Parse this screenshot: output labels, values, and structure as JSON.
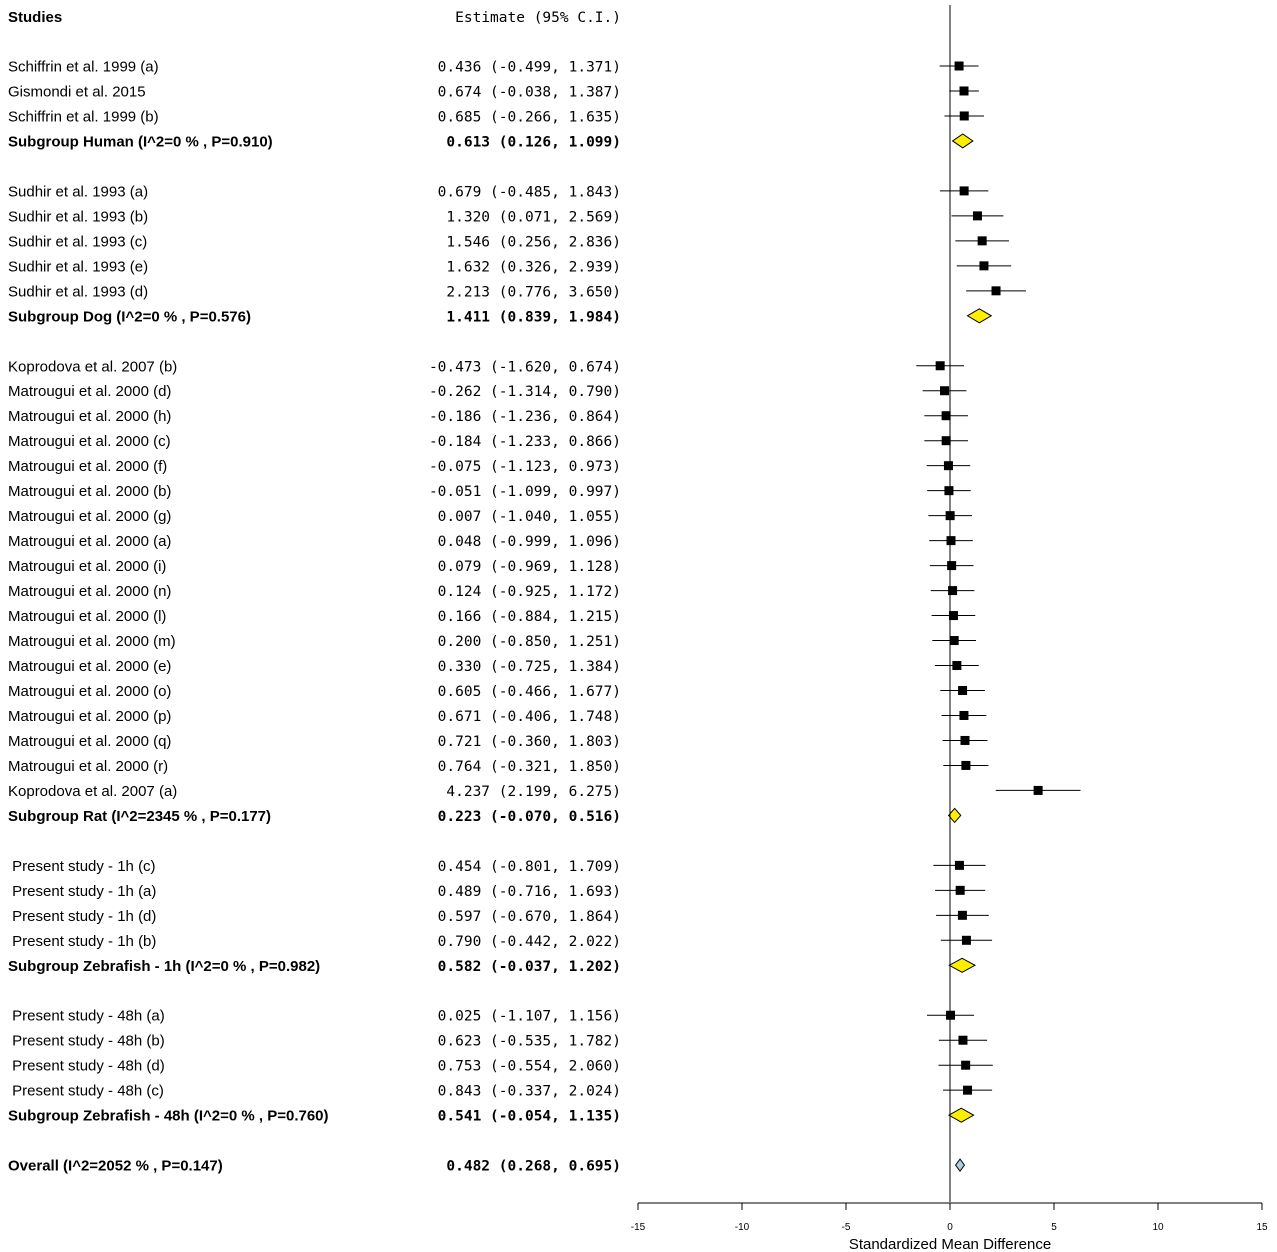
{
  "chart_data": {
    "type": "forest",
    "header": {
      "studies": "Studies",
      "estimate": "Estimate (95% C.I.)"
    },
    "xlabel": "Standardized Mean Difference",
    "xlim": [
      -15,
      15
    ],
    "xticks": [
      -15,
      -10,
      -5,
      0,
      5,
      10,
      15
    ],
    "colors": {
      "summary_fill": "#ffee00",
      "overall_fill": "#a9cfe0",
      "marker": "#000000"
    },
    "rows": [
      {
        "kind": "study",
        "label": "Schiffrin et al. 1999 (a)",
        "est": 0.436,
        "lo": -0.499,
        "hi": 1.371,
        "text": "0.436 (-0.499, 1.371)"
      },
      {
        "kind": "study",
        "label": "Gismondi et al. 2015",
        "est": 0.674,
        "lo": -0.038,
        "hi": 1.387,
        "text": "0.674 (-0.038, 1.387)"
      },
      {
        "kind": "study",
        "label": "Schiffrin et al. 1999 (b)",
        "est": 0.685,
        "lo": -0.266,
        "hi": 1.635,
        "text": "0.685 (-0.266, 1.635)"
      },
      {
        "kind": "subgroup",
        "label": "Subgroup Human (I^2=0 % , P=0.910)",
        "est": 0.613,
        "lo": 0.126,
        "hi": 1.099,
        "text": "0.613 (0.126, 1.099)"
      },
      {
        "kind": "blank"
      },
      {
        "kind": "study",
        "label": "Sudhir et al. 1993 (a)",
        "est": 0.679,
        "lo": -0.485,
        "hi": 1.843,
        "text": "0.679 (-0.485, 1.843)"
      },
      {
        "kind": "study",
        "label": "Sudhir et al. 1993 (b)",
        "est": 1.32,
        "lo": 0.071,
        "hi": 2.569,
        "text": "1.320 (0.071, 2.569)"
      },
      {
        "kind": "study",
        "label": "Sudhir et al. 1993 (c)",
        "est": 1.546,
        "lo": 0.256,
        "hi": 2.836,
        "text": "1.546 (0.256, 2.836)"
      },
      {
        "kind": "study",
        "label": "Sudhir et al. 1993 (e)",
        "est": 1.632,
        "lo": 0.326,
        "hi": 2.939,
        "text": "1.632 (0.326, 2.939)"
      },
      {
        "kind": "study",
        "label": "Sudhir et al. 1993 (d)",
        "est": 2.213,
        "lo": 0.776,
        "hi": 3.65,
        "text": "2.213 (0.776, 3.650)"
      },
      {
        "kind": "subgroup",
        "label": "Subgroup Dog (I^2=0 % , P=0.576)",
        "est": 1.411,
        "lo": 0.839,
        "hi": 1.984,
        "text": "1.411 (0.839, 1.984)"
      },
      {
        "kind": "blank"
      },
      {
        "kind": "study",
        "label": "Koprodova et al. 2007 (b)",
        "est": -0.473,
        "lo": -1.62,
        "hi": 0.674,
        "text": "-0.473 (-1.620, 0.674)"
      },
      {
        "kind": "study",
        "label": "Matrougui et al. 2000 (d)",
        "est": -0.262,
        "lo": -1.314,
        "hi": 0.79,
        "text": "-0.262 (-1.314, 0.790)"
      },
      {
        "kind": "study",
        "label": "Matrougui et al. 2000 (h)",
        "est": -0.186,
        "lo": -1.236,
        "hi": 0.864,
        "text": "-0.186 (-1.236, 0.864)"
      },
      {
        "kind": "study",
        "label": "Matrougui et al. 2000 (c)",
        "est": -0.184,
        "lo": -1.233,
        "hi": 0.866,
        "text": "-0.184 (-1.233, 0.866)"
      },
      {
        "kind": "study",
        "label": "Matrougui et al. 2000 (f)",
        "est": -0.075,
        "lo": -1.123,
        "hi": 0.973,
        "text": "-0.075 (-1.123, 0.973)"
      },
      {
        "kind": "study",
        "label": "Matrougui et al. 2000 (b)",
        "est": -0.051,
        "lo": -1.099,
        "hi": 0.997,
        "text": "-0.051 (-1.099, 0.997)"
      },
      {
        "kind": "study",
        "label": "Matrougui et al. 2000 (g)",
        "est": 0.007,
        "lo": -1.04,
        "hi": 1.055,
        "text": "0.007 (-1.040, 1.055)"
      },
      {
        "kind": "study",
        "label": "Matrougui et al. 2000 (a)",
        "est": 0.048,
        "lo": -0.999,
        "hi": 1.096,
        "text": "0.048 (-0.999, 1.096)"
      },
      {
        "kind": "study",
        "label": "Matrougui et al. 2000 (i)",
        "est": 0.079,
        "lo": -0.969,
        "hi": 1.128,
        "text": "0.079 (-0.969, 1.128)"
      },
      {
        "kind": "study",
        "label": "Matrougui et al. 2000 (n)",
        "est": 0.124,
        "lo": -0.925,
        "hi": 1.172,
        "text": "0.124 (-0.925, 1.172)"
      },
      {
        "kind": "study",
        "label": "Matrougui et al. 2000 (l)",
        "est": 0.166,
        "lo": -0.884,
        "hi": 1.215,
        "text": "0.166 (-0.884, 1.215)"
      },
      {
        "kind": "study",
        "label": "Matrougui et al. 2000 (m)",
        "est": 0.2,
        "lo": -0.85,
        "hi": 1.251,
        "text": "0.200 (-0.850, 1.251)"
      },
      {
        "kind": "study",
        "label": "Matrougui et al. 2000 (e)",
        "est": 0.33,
        "lo": -0.725,
        "hi": 1.384,
        "text": "0.330 (-0.725, 1.384)"
      },
      {
        "kind": "study",
        "label": "Matrougui et al. 2000 (o)",
        "est": 0.605,
        "lo": -0.466,
        "hi": 1.677,
        "text": "0.605 (-0.466, 1.677)"
      },
      {
        "kind": "study",
        "label": "Matrougui et al. 2000 (p)",
        "est": 0.671,
        "lo": -0.406,
        "hi": 1.748,
        "text": "0.671 (-0.406, 1.748)"
      },
      {
        "kind": "study",
        "label": "Matrougui et al. 2000 (q)",
        "est": 0.721,
        "lo": -0.36,
        "hi": 1.803,
        "text": "0.721 (-0.360, 1.803)"
      },
      {
        "kind": "study",
        "label": "Matrougui et al. 2000 (r)",
        "est": 0.764,
        "lo": -0.321,
        "hi": 1.85,
        "text": "0.764 (-0.321, 1.850)"
      },
      {
        "kind": "study",
        "label": "Koprodova et al. 2007 (a)",
        "est": 4.237,
        "lo": 2.199,
        "hi": 6.275,
        "text": "4.237 (2.199, 6.275)"
      },
      {
        "kind": "subgroup",
        "label": "Subgroup Rat (I^2=2345 % , P=0.177)",
        "est": 0.223,
        "lo": -0.07,
        "hi": 0.516,
        "text": "0.223 (-0.070, 0.516)"
      },
      {
        "kind": "blank"
      },
      {
        "kind": "study",
        "label": " Present study - 1h (c)",
        "est": 0.454,
        "lo": -0.801,
        "hi": 1.709,
        "text": "0.454 (-0.801, 1.709)"
      },
      {
        "kind": "study",
        "label": " Present study - 1h (a)",
        "est": 0.489,
        "lo": -0.716,
        "hi": 1.693,
        "text": "0.489 (-0.716, 1.693)"
      },
      {
        "kind": "study",
        "label": " Present study - 1h (d)",
        "est": 0.597,
        "lo": -0.67,
        "hi": 1.864,
        "text": "0.597 (-0.670, 1.864)"
      },
      {
        "kind": "study",
        "label": " Present study - 1h (b)",
        "est": 0.79,
        "lo": -0.442,
        "hi": 2.022,
        "text": "0.790 (-0.442, 2.022)"
      },
      {
        "kind": "subgroup",
        "label": "Subgroup Zebrafish - 1h (I^2=0 % , P=0.982)",
        "est": 0.582,
        "lo": -0.037,
        "hi": 1.202,
        "text": "0.582 (-0.037, 1.202)"
      },
      {
        "kind": "blank"
      },
      {
        "kind": "study",
        "label": " Present study - 48h (a)",
        "est": 0.025,
        "lo": -1.107,
        "hi": 1.156,
        "text": "0.025 (-1.107, 1.156)"
      },
      {
        "kind": "study",
        "label": " Present study - 48h (b)",
        "est": 0.623,
        "lo": -0.535,
        "hi": 1.782,
        "text": "0.623 (-0.535, 1.782)"
      },
      {
        "kind": "study",
        "label": " Present study - 48h (d)",
        "est": 0.753,
        "lo": -0.554,
        "hi": 2.06,
        "text": "0.753 (-0.554, 2.060)"
      },
      {
        "kind": "study",
        "label": " Present study - 48h (c)",
        "est": 0.843,
        "lo": -0.337,
        "hi": 2.024,
        "text": "0.843 (-0.337, 2.024)"
      },
      {
        "kind": "subgroup",
        "label": "Subgroup Zebrafish - 48h (I^2=0 % , P=0.760)",
        "est": 0.541,
        "lo": -0.054,
        "hi": 1.135,
        "text": "0.541 (-0.054, 1.135)"
      },
      {
        "kind": "blank"
      },
      {
        "kind": "overall",
        "label": "Overall (I^2=2052 % , P=0.147)",
        "est": 0.482,
        "lo": 0.268,
        "hi": 0.695,
        "text": "0.482 (0.268, 0.695)"
      }
    ]
  }
}
